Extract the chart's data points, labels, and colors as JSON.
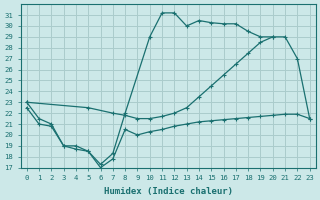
{
  "xlabel": "Humidex (Indice chaleur)",
  "bg_color": "#cce8e8",
  "grid_color": "#aacccc",
  "line_color": "#1a7070",
  "xlim": [
    -0.5,
    23.5
  ],
  "ylim": [
    17,
    32
  ],
  "yticks": [
    17,
    18,
    19,
    20,
    21,
    22,
    23,
    24,
    25,
    26,
    27,
    28,
    29,
    30,
    31
  ],
  "xticks": [
    0,
    1,
    2,
    3,
    4,
    5,
    6,
    7,
    8,
    9,
    10,
    11,
    12,
    13,
    14,
    15,
    16,
    17,
    18,
    19,
    20,
    21,
    22,
    23
  ],
  "line1_x": [
    0,
    1,
    2,
    3,
    4,
    5,
    6,
    7,
    8,
    10,
    11,
    12,
    13,
    14,
    15,
    16,
    17,
    18,
    19,
    20
  ],
  "line1_y": [
    23.0,
    21.5,
    21.0,
    19.0,
    18.7,
    18.5,
    17.3,
    18.3,
    22.0,
    29.0,
    31.2,
    31.2,
    30.0,
    30.5,
    30.3,
    30.2,
    30.2,
    29.5,
    29.0,
    29.0
  ],
  "line2_x": [
    0,
    5,
    7,
    8,
    9,
    10,
    11,
    12,
    13,
    14,
    15,
    16,
    17,
    18,
    19,
    20,
    21,
    22,
    23
  ],
  "line2_y": [
    23.0,
    22.5,
    22.0,
    21.8,
    21.5,
    21.5,
    21.7,
    22.0,
    22.5,
    23.5,
    24.5,
    25.5,
    26.5,
    27.5,
    28.5,
    29.0,
    29.0,
    27.0,
    21.5
  ],
  "line3_x": [
    0,
    1,
    2,
    3,
    4,
    5,
    6,
    7,
    8,
    9,
    10,
    11,
    12,
    13,
    14,
    15,
    16,
    17,
    18,
    19,
    20,
    21,
    22,
    23
  ],
  "line3_y": [
    22.5,
    21.0,
    20.8,
    19.0,
    19.0,
    18.5,
    17.0,
    17.8,
    20.5,
    20.0,
    20.3,
    20.5,
    20.8,
    21.0,
    21.2,
    21.3,
    21.4,
    21.5,
    21.6,
    21.7,
    21.8,
    21.9,
    21.9,
    21.5
  ]
}
